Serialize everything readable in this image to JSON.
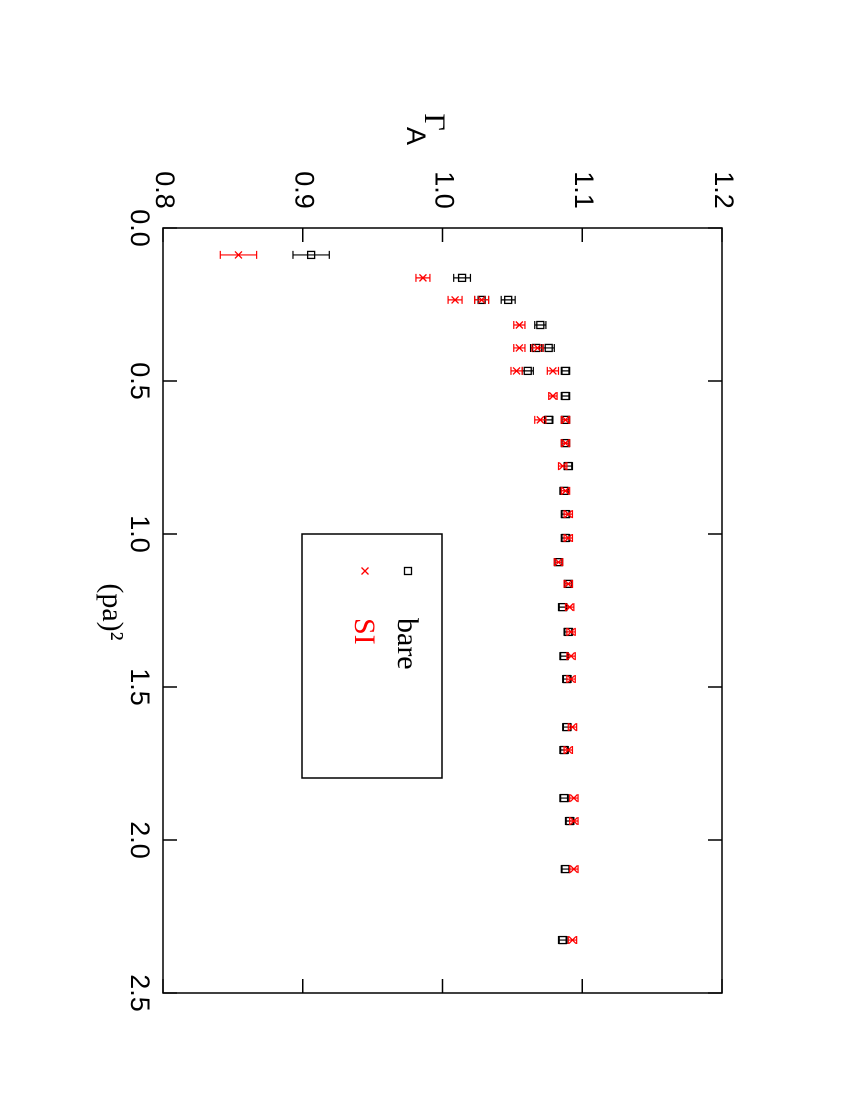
{
  "chart_data": {
    "type": "scatter",
    "xlabel": "(pa)²",
    "ylabel": "Γ",
    "ylabel_sub": "A",
    "xlim": [
      0,
      2.5
    ],
    "xticks": [
      {
        "value": 0,
        "label": "0.0"
      },
      0.5,
      {
        "value": 1,
        "label": "1.0"
      },
      1.5,
      {
        "value": 2,
        "label": "2.0"
      },
      2.5
    ],
    "ylim": [
      0.8,
      1.2
    ],
    "yticks": [
      0.8,
      0.9,
      {
        "value": 1,
        "label": "1.0"
      },
      1.1,
      1.2
    ],
    "x": [
      0.088,
      0.163,
      0.235,
      0.235,
      0.317,
      0.392,
      0.392,
      0.467,
      0.467,
      0.549,
      0.627,
      0.627,
      0.703,
      0.778,
      0.859,
      0.935,
      1.013,
      1.092,
      1.163,
      1.239,
      1.32,
      1.399,
      1.474,
      1.631,
      1.706,
      1.863,
      1.938,
      2.095,
      2.327
    ],
    "series": [
      {
        "name": "bare",
        "color": "#000000",
        "marker": "square",
        "values": [
          0.906,
          1.014,
          1.028,
          1.047,
          1.07,
          1.067,
          1.076,
          1.061,
          1.088,
          1.088,
          1.076,
          1.088,
          1.088,
          1.09,
          1.087,
          1.088,
          1.088,
          1.083,
          1.09,
          1.086,
          1.09,
          1.087,
          1.089,
          1.089,
          1.087,
          1.087,
          1.091,
          1.088,
          1.086
        ],
        "errors": [
          0.013,
          0.006,
          0.005,
          0.005,
          0.004,
          0.004,
          0.004,
          0.004,
          0.003,
          0.003,
          0.003,
          0.003,
          0.003,
          0.003,
          0.003,
          0.003,
          0.003,
          0.003,
          0.003,
          0.003,
          0.003,
          0.003,
          0.003,
          0.003,
          0.003,
          0.003,
          0.003,
          0.003,
          0.003
        ]
      },
      {
        "name": "SI",
        "color": "#ff0000",
        "marker": "cross",
        "values": [
          0.854,
          0.986,
          1.009,
          1.028,
          1.055,
          1.055,
          1.068,
          1.053,
          1.079,
          1.079,
          1.07,
          1.088,
          1.088,
          1.086,
          1.088,
          1.09,
          1.09,
          1.083,
          1.09,
          1.091,
          1.092,
          1.092,
          1.092,
          1.093,
          1.09,
          1.094,
          1.094,
          1.094,
          1.093
        ],
        "errors": [
          0.013,
          0.005,
          0.005,
          0.005,
          0.004,
          0.004,
          0.004,
          0.004,
          0.004,
          0.003,
          0.004,
          0.003,
          0.003,
          0.003,
          0.003,
          0.003,
          0.003,
          0.003,
          0.003,
          0.003,
          0.003,
          0.003,
          0.003,
          0.003,
          0.003,
          0.003,
          0.003,
          0.003,
          0.003
        ]
      }
    ]
  }
}
